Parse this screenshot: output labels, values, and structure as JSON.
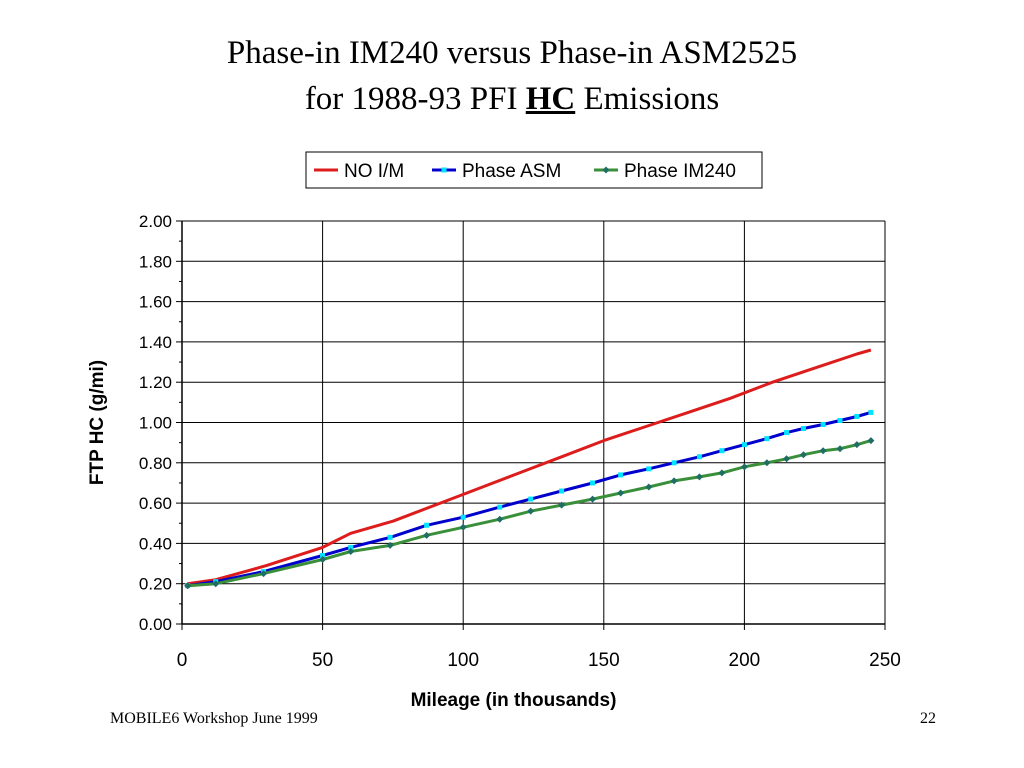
{
  "slide": {
    "title_line1": "Phase-in IM240 versus Phase-in ASM2525",
    "title_line2_prefix": "for 1988-93 PFI ",
    "title_line2_bold": "HC",
    "title_line2_suffix": " Emissions",
    "footer_left": "MOBILE6 Workshop June 1999",
    "page_number": "22"
  },
  "chart_data": {
    "type": "line",
    "title": "",
    "xlabel": "Mileage (in thousands)",
    "ylabel": "FTP HC (g/mi)",
    "xlim": [
      0,
      250
    ],
    "ylim": [
      0,
      2
    ],
    "xticks": [
      "0",
      "50",
      "100",
      "150",
      "200",
      "250"
    ],
    "yticks": [
      "0.00",
      "0.20",
      "0.40",
      "0.60",
      "0.80",
      "1.00",
      "1.20",
      "1.40",
      "1.60",
      "1.80",
      "2.00"
    ],
    "grid": true,
    "legend_position": "top",
    "series": [
      {
        "name": "NO I/M",
        "color": "#dd1c1c",
        "marker": "none",
        "x": [
          2,
          12,
          30,
          50,
          60,
          75,
          90,
          105,
          120,
          135,
          150,
          165,
          180,
          195,
          210,
          225,
          240,
          245
        ],
        "y": [
          0.2,
          0.22,
          0.29,
          0.38,
          0.45,
          0.51,
          0.59,
          0.67,
          0.75,
          0.83,
          0.91,
          0.98,
          1.05,
          1.12,
          1.2,
          1.27,
          1.34,
          1.36
        ]
      },
      {
        "name": "Phase ASM",
        "color": "#0000cc",
        "marker_color": "#00e5ff",
        "marker": "square",
        "x": [
          2,
          12,
          29,
          50,
          60,
          74,
          87,
          100,
          113,
          124,
          135,
          146,
          156,
          166,
          175,
          184,
          192,
          200,
          208,
          215,
          221,
          228,
          234,
          240,
          245
        ],
        "y": [
          0.19,
          0.21,
          0.26,
          0.34,
          0.38,
          0.43,
          0.49,
          0.53,
          0.58,
          0.62,
          0.66,
          0.7,
          0.74,
          0.77,
          0.8,
          0.83,
          0.86,
          0.89,
          0.92,
          0.95,
          0.97,
          0.99,
          1.01,
          1.03,
          1.05
        ]
      },
      {
        "name": "Phase IM240",
        "color": "#3a8f3a",
        "marker_color": "#1e6e64",
        "marker": "diamond",
        "x": [
          2,
          12,
          29,
          50,
          60,
          74,
          87,
          100,
          113,
          124,
          135,
          146,
          156,
          166,
          175,
          184,
          192,
          200,
          208,
          215,
          221,
          228,
          234,
          240,
          245
        ],
        "y": [
          0.19,
          0.2,
          0.25,
          0.32,
          0.36,
          0.39,
          0.44,
          0.48,
          0.52,
          0.56,
          0.59,
          0.62,
          0.65,
          0.68,
          0.71,
          0.73,
          0.75,
          0.78,
          0.8,
          0.82,
          0.84,
          0.86,
          0.87,
          0.89,
          0.91
        ]
      }
    ]
  }
}
